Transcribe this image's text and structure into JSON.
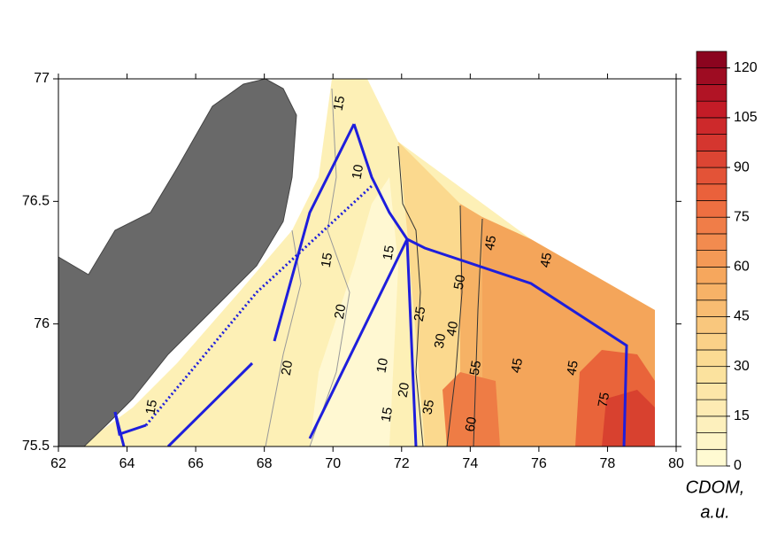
{
  "chart_data": {
    "type": "contour-map",
    "xlim": [
      62,
      80
    ],
    "xticks": [
      62,
      64,
      66,
      68,
      70,
      72,
      74,
      76,
      78,
      80
    ],
    "ylim": [
      75.5,
      77
    ],
    "yticks": [
      75.5,
      76,
      76.5,
      77
    ],
    "colorbar": {
      "lim": [
        0,
        125
      ],
      "ticks": [
        0,
        15,
        30,
        45,
        60,
        75,
        90,
        105,
        120
      ],
      "step": 5,
      "label": [
        "CDOM,",
        "a.u."
      ]
    },
    "contour_labels": [
      {
        "value": 15,
        "x": 70.2,
        "y": 76.9
      },
      {
        "value": 10,
        "x": 70.74,
        "y": 76.62
      },
      {
        "value": 15,
        "x": 69.84,
        "y": 76.26
      },
      {
        "value": 15,
        "x": 71.64,
        "y": 76.29
      },
      {
        "value": 20,
        "x": 70.23,
        "y": 76.05
      },
      {
        "value": 25,
        "x": 72.55,
        "y": 76.04
      },
      {
        "value": 50,
        "x": 73.71,
        "y": 76.17
      },
      {
        "value": 45,
        "x": 74.61,
        "y": 76.33
      },
      {
        "value": 45,
        "x": 76.23,
        "y": 76.26
      },
      {
        "value": 40,
        "x": 73.5,
        "y": 75.98
      },
      {
        "value": 30,
        "x": 73.14,
        "y": 75.93
      },
      {
        "value": 20,
        "x": 68.68,
        "y": 75.82
      },
      {
        "value": 10,
        "x": 71.46,
        "y": 75.83
      },
      {
        "value": 55,
        "x": 74.17,
        "y": 75.82
      },
      {
        "value": 45,
        "x": 75.38,
        "y": 75.83
      },
      {
        "value": 45,
        "x": 77.0,
        "y": 75.82
      },
      {
        "value": 20,
        "x": 72.08,
        "y": 75.73
      },
      {
        "value": 35,
        "x": 72.8,
        "y": 75.66
      },
      {
        "value": 15,
        "x": 71.59,
        "y": 75.63
      },
      {
        "value": 60,
        "x": 74.04,
        "y": 75.59
      },
      {
        "value": 75,
        "x": 77.91,
        "y": 75.69
      },
      {
        "value": 15,
        "x": 64.73,
        "y": 75.66
      }
    ]
  }
}
